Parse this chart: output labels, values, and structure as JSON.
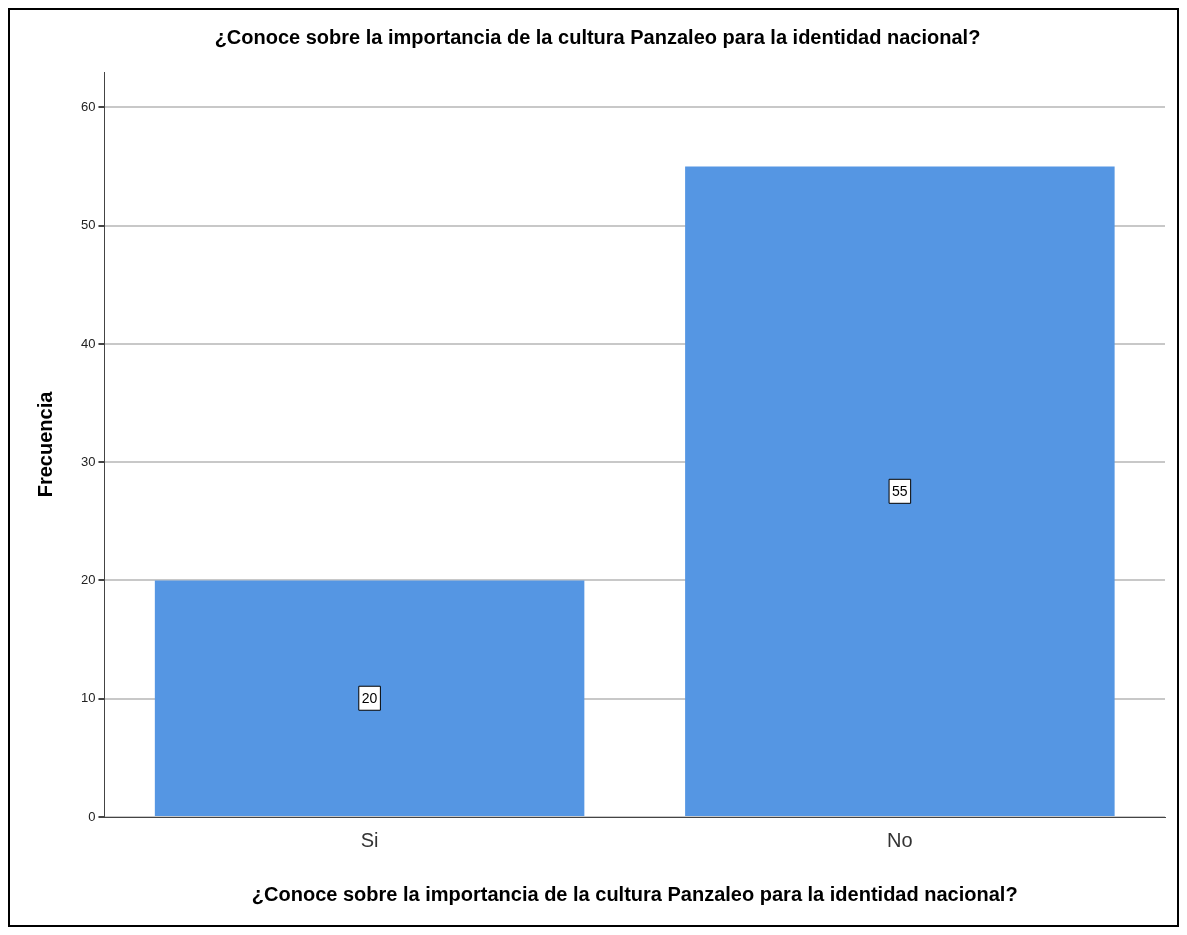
{
  "chart_data": {
    "type": "bar",
    "title": "¿Conoce sobre la importancia de la cultura Panzaleo para la identidad nacional?",
    "xlabel": "¿Conoce sobre la importancia de la cultura Panzaleo para la identidad nacional?",
    "ylabel": "Frecuencia",
    "categories": [
      "Si",
      "No"
    ],
    "values": [
      20,
      55
    ],
    "color": "#5596e3",
    "ylim": [
      0,
      63
    ],
    "yticks": [
      0,
      10,
      20,
      30,
      40,
      50,
      60
    ],
    "grid": "y",
    "data_labels": true,
    "legend": false
  }
}
